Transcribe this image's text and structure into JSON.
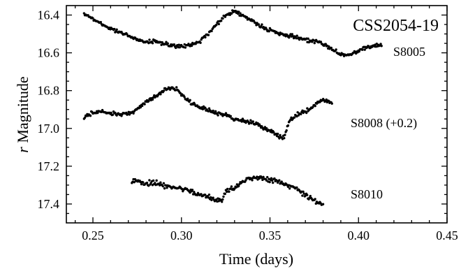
{
  "chart_data": {
    "type": "scatter",
    "title": "CSS2054-19",
    "xlabel": "Time (days)",
    "ylabel_prefix": "r",
    "ylabel_suffix": " Magnitude",
    "xlim": [
      0.235,
      0.45
    ],
    "ylim": [
      17.5,
      16.35
    ],
    "y_inverted": true,
    "grid": false,
    "x_ticks": [
      0.25,
      0.3,
      0.35,
      0.4,
      0.45
    ],
    "x_tick_labels": [
      "0.25",
      "0.30",
      "0.35",
      "0.40",
      "0.45"
    ],
    "y_ticks": [
      16.4,
      16.6,
      16.8,
      17.0,
      17.2,
      17.4
    ],
    "y_tick_labels": [
      "16.4",
      "16.6",
      "16.8",
      "17.0",
      "17.2",
      "17.4"
    ],
    "series": [
      {
        "name": "S8005",
        "x_range": [
          0.245,
          0.413
        ],
        "scatter": 0.012,
        "points": [
          [
            0.245,
            16.39
          ],
          [
            0.25,
            16.42
          ],
          [
            0.255,
            16.45
          ],
          [
            0.26,
            16.47
          ],
          [
            0.265,
            16.49
          ],
          [
            0.27,
            16.51
          ],
          [
            0.275,
            16.53
          ],
          [
            0.28,
            16.54
          ],
          [
            0.285,
            16.54
          ],
          [
            0.29,
            16.55
          ],
          [
            0.295,
            16.56
          ],
          [
            0.3,
            16.57
          ],
          [
            0.305,
            16.56
          ],
          [
            0.31,
            16.54
          ],
          [
            0.315,
            16.5
          ],
          [
            0.32,
            16.45
          ],
          [
            0.325,
            16.4
          ],
          [
            0.33,
            16.38
          ],
          [
            0.335,
            16.4
          ],
          [
            0.34,
            16.43
          ],
          [
            0.345,
            16.46
          ],
          [
            0.35,
            16.48
          ],
          [
            0.355,
            16.5
          ],
          [
            0.36,
            16.51
          ],
          [
            0.365,
            16.52
          ],
          [
            0.37,
            16.53
          ],
          [
            0.375,
            16.54
          ],
          [
            0.38,
            16.55
          ],
          [
            0.385,
            16.58
          ],
          [
            0.39,
            16.61
          ],
          [
            0.395,
            16.61
          ],
          [
            0.4,
            16.59
          ],
          [
            0.405,
            16.57
          ],
          [
            0.41,
            16.56
          ],
          [
            0.413,
            16.56
          ]
        ]
      },
      {
        "name": "S8008 (+0.2)",
        "x_range": [
          0.245,
          0.385
        ],
        "scatter": 0.013,
        "points": [
          [
            0.245,
            16.94
          ],
          [
            0.25,
            16.92
          ],
          [
            0.255,
            16.91
          ],
          [
            0.26,
            16.92
          ],
          [
            0.265,
            16.93
          ],
          [
            0.27,
            16.92
          ],
          [
            0.275,
            16.9
          ],
          [
            0.28,
            16.86
          ],
          [
            0.285,
            16.83
          ],
          [
            0.29,
            16.8
          ],
          [
            0.294,
            16.78
          ],
          [
            0.298,
            16.8
          ],
          [
            0.302,
            16.84
          ],
          [
            0.306,
            16.87
          ],
          [
            0.31,
            16.89
          ],
          [
            0.315,
            16.9
          ],
          [
            0.32,
            16.92
          ],
          [
            0.325,
            16.93
          ],
          [
            0.33,
            16.95
          ],
          [
            0.335,
            16.96
          ],
          [
            0.34,
            16.97
          ],
          [
            0.345,
            16.99
          ],
          [
            0.35,
            17.01
          ],
          [
            0.355,
            17.04
          ],
          [
            0.358,
            17.05
          ],
          [
            0.361,
            16.96
          ],
          [
            0.365,
            16.93
          ],
          [
            0.37,
            16.91
          ],
          [
            0.375,
            16.88
          ],
          [
            0.38,
            16.85
          ],
          [
            0.385,
            16.86
          ]
        ]
      },
      {
        "name": "S8010",
        "x_range": [
          0.272,
          0.38
        ],
        "scatter": 0.016,
        "points": [
          [
            0.272,
            17.28
          ],
          [
            0.275,
            17.28
          ],
          [
            0.28,
            17.29
          ],
          [
            0.285,
            17.29
          ],
          [
            0.29,
            17.3
          ],
          [
            0.295,
            17.31
          ],
          [
            0.3,
            17.32
          ],
          [
            0.305,
            17.33
          ],
          [
            0.31,
            17.35
          ],
          [
            0.315,
            17.36
          ],
          [
            0.32,
            17.38
          ],
          [
            0.323,
            17.38
          ],
          [
            0.325,
            17.33
          ],
          [
            0.33,
            17.31
          ],
          [
            0.335,
            17.28
          ],
          [
            0.34,
            17.26
          ],
          [
            0.345,
            17.26
          ],
          [
            0.35,
            17.27
          ],
          [
            0.355,
            17.28
          ],
          [
            0.36,
            17.3
          ],
          [
            0.365,
            17.32
          ],
          [
            0.37,
            17.35
          ],
          [
            0.375,
            17.38
          ],
          [
            0.38,
            17.4
          ]
        ]
      }
    ]
  }
}
